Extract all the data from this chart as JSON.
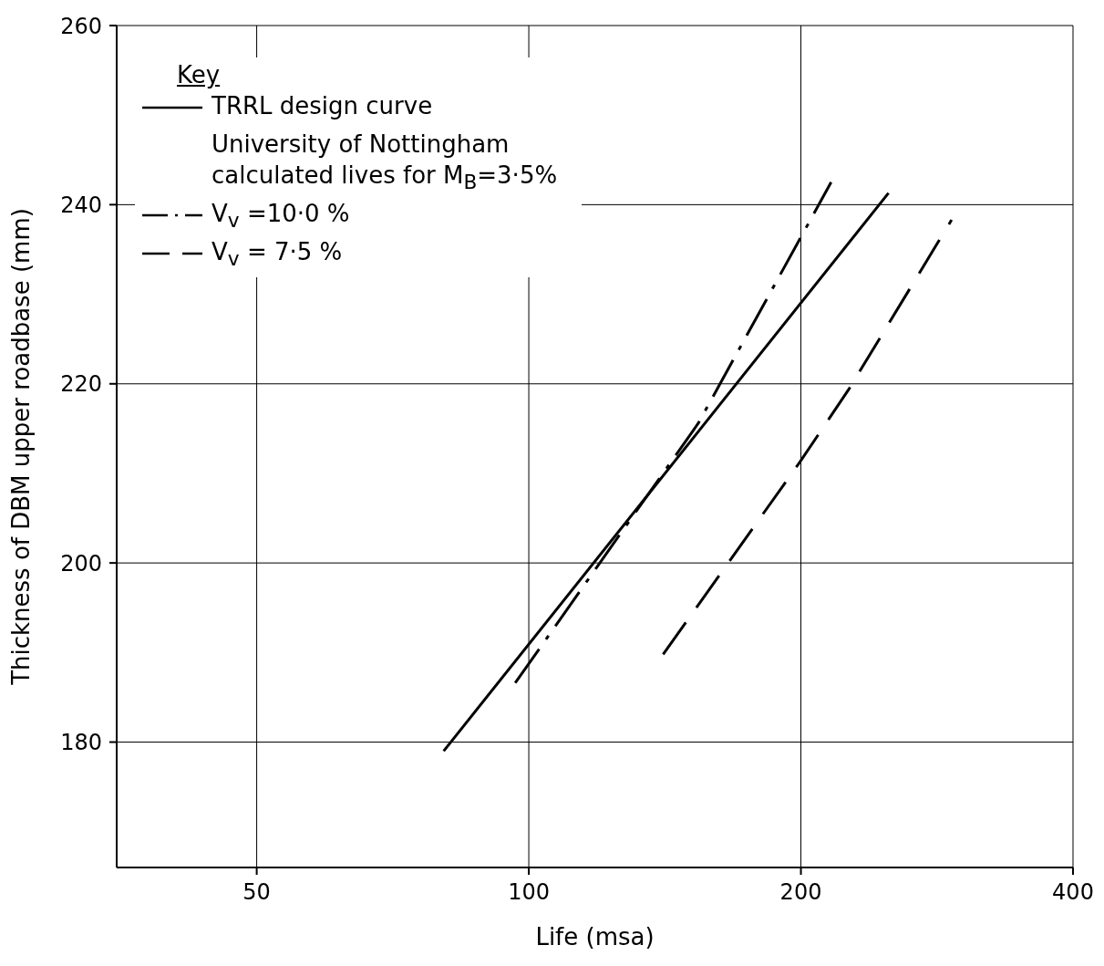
{
  "chart_data": {
    "type": "line",
    "xlabel": "Life  (msa)",
    "ylabel": "Thickness of DBM upper roadbase  (mm)",
    "legend_title": "Key",
    "log": "x",
    "xlim": [
      35,
      400
    ],
    "xticks": [
      50,
      100,
      200,
      400
    ],
    "ylim": [
      166,
      260
    ],
    "yticks": [
      180,
      200,
      220,
      240,
      260
    ],
    "grid": true,
    "legend": "top left",
    "marker": "none",
    "annotations": [
      "University of Nottingham calculated lives for M$_{B}$=3·5%"
    ],
    "series": [
      {
        "name": "TRRL design curve",
        "color": "#000000",
        "line_style": "solid",
        "x": [
          80.5,
          250
        ],
        "values": [
          179,
          241.3
        ]
      },
      {
        "name": "V$_{v}$ =10·0 %",
        "color": "#000000",
        "line_style": "dashdot",
        "x": [
          96.6,
          154,
          216
        ],
        "values": [
          186.6,
          215.6,
          242.5
        ]
      },
      {
        "name": "V$_{v}$ = 7·5 %",
        "color": "#000000",
        "line_style": "dashed",
        "x": [
          140.8,
          199.6,
          226,
          293.6
        ],
        "values": [
          189.8,
          211.3,
          219.4,
          238.3
        ]
      }
    ]
  }
}
